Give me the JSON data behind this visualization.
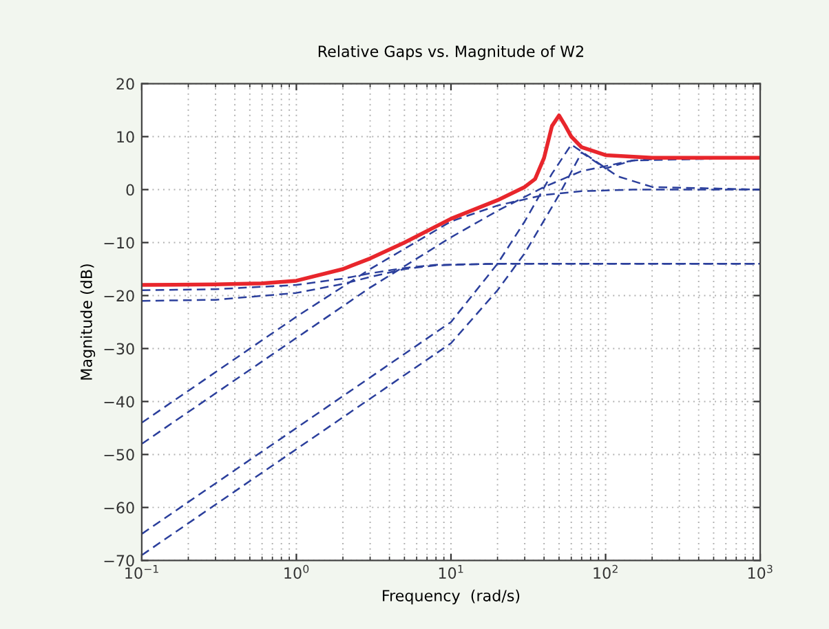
{
  "chart_data": {
    "type": "line",
    "title": "Relative Gaps vs. Magnitude of W2",
    "xlabel": "Frequency  (rad/s)",
    "ylabel": "Magnitude (dB)",
    "log": "x",
    "grid": true,
    "marker": "none",
    "xlim": [
      0.1,
      1000
    ],
    "ylim": [
      -70,
      20
    ],
    "xticks": [
      {
        "value": 0.1,
        "label": "10$^{−1}$"
      },
      {
        "value": 1,
        "label": "10$^{0}$"
      },
      {
        "value": 10,
        "label": "10$^{1}$"
      },
      {
        "value": 100,
        "label": "10$^{2}$"
      },
      {
        "value": 1000,
        "label": "10$^{3}$"
      }
    ],
    "yticks": [
      -70,
      -60,
      -50,
      -40,
      -30,
      -20,
      -10,
      0,
      10,
      20
    ],
    "series": [
      {
        "color": "#2b3f9c",
        "line_style": "dashed",
        "x": [
          0.1,
          0.3,
          1,
          2,
          3,
          5,
          8,
          20,
          100,
          1000
        ],
        "values": [
          -19,
          -18.8,
          -18,
          -16.8,
          -15.8,
          -14.8,
          -14.2,
          -14,
          -14,
          -14
        ]
      },
      {
        "color": "#2b3f9c",
        "line_style": "dashed",
        "x": [
          0.1,
          0.3,
          1,
          2,
          3,
          5,
          8,
          20,
          100,
          1000
        ],
        "values": [
          -21,
          -20.8,
          -19.5,
          -17.8,
          -16.5,
          -15,
          -14.3,
          -14,
          -14,
          -14
        ]
      },
      {
        "color": "#2b3f9c",
        "line_style": "dashed",
        "x": [
          0.1,
          1,
          3,
          10,
          20,
          40,
          70,
          150,
          1000
        ],
        "values": [
          -44,
          -24,
          -15,
          -6,
          -3,
          -1,
          -0.3,
          0,
          0
        ]
      },
      {
        "color": "#2b3f9c",
        "line_style": "dashed",
        "x": [
          0.1,
          1,
          3,
          10,
          20,
          40,
          70,
          150,
          1000
        ],
        "values": [
          -48,
          -28,
          -18.5,
          -9,
          -4,
          0.5,
          3.5,
          5.5,
          6
        ]
      },
      {
        "color": "#2b3f9c",
        "line_style": "dashed",
        "x": [
          0.1,
          1,
          10,
          20,
          30,
          45,
          60,
          80,
          120,
          200,
          1000
        ],
        "values": [
          -65,
          -45,
          -25,
          -14,
          -6,
          3,
          8.5,
          6,
          2.5,
          0.5,
          0
        ]
      },
      {
        "color": "#2b3f9c",
        "line_style": "dashed",
        "x": [
          0.1,
          1,
          10,
          20,
          30,
          50,
          70,
          100,
          150,
          300,
          1000
        ],
        "values": [
          -69,
          -49,
          -29,
          -19,
          -12,
          -1,
          7,
          4,
          5.5,
          6,
          6
        ]
      },
      {
        "color": "#e8262c",
        "line_style": "solid",
        "x": [
          0.1,
          0.3,
          0.6,
          1,
          2,
          3,
          5,
          10,
          20,
          30,
          35,
          40,
          45,
          50,
          55,
          60,
          70,
          100,
          200,
          1000
        ],
        "values": [
          -18,
          -17.9,
          -17.7,
          -17.2,
          -15,
          -13,
          -10,
          -5.5,
          -2,
          0.5,
          2,
          6,
          12,
          14,
          12,
          10,
          8,
          6.5,
          6,
          6
        ]
      }
    ]
  }
}
